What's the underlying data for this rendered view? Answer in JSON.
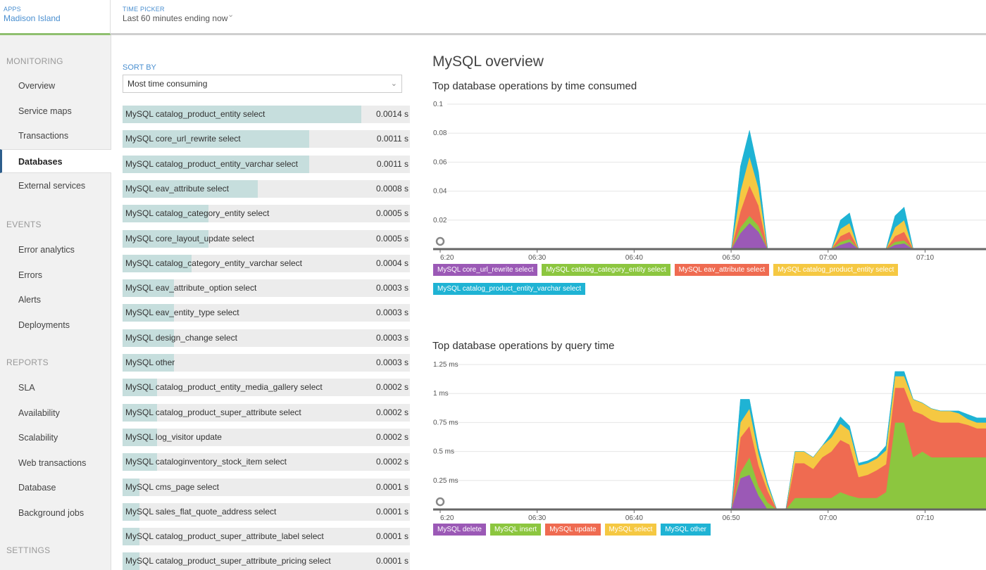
{
  "topbar": {
    "apps_label": "APPS",
    "app_name": "Madison Island",
    "time_picker_label": "TIME PICKER",
    "time_range": "Last 60 minutes ending now"
  },
  "sidebar": {
    "sections": [
      {
        "title": "MONITORING",
        "items": [
          "Overview",
          "Service maps",
          "Transactions",
          "Databases",
          "External services"
        ]
      },
      {
        "title": "EVENTS",
        "items": [
          "Error analytics",
          "Errors",
          "Alerts",
          "Deployments"
        ]
      },
      {
        "title": "REPORTS",
        "items": [
          "SLA",
          "Availability",
          "Scalability",
          "Web transactions",
          "Database",
          "Background jobs"
        ]
      },
      {
        "title": "SETTINGS",
        "items": []
      }
    ],
    "active_item": "Databases"
  },
  "sort": {
    "label": "SORT BY",
    "selected": "Most time consuming"
  },
  "operations": [
    {
      "name": "MySQL catalog_product_entity select",
      "value": "0.0014 s",
      "fraction": 0.83
    },
    {
      "name": "MySQL core_url_rewrite select",
      "value": "0.0011 s",
      "fraction": 0.65
    },
    {
      "name": "MySQL catalog_product_entity_varchar select",
      "value": "0.0011 s",
      "fraction": 0.65
    },
    {
      "name": "MySQL eav_attribute select",
      "value": "0.0008 s",
      "fraction": 0.47
    },
    {
      "name": "MySQL catalog_category_entity select",
      "value": "0.0005 s",
      "fraction": 0.3
    },
    {
      "name": "MySQL core_layout_update select",
      "value": "0.0005 s",
      "fraction": 0.3
    },
    {
      "name": "MySQL catalog_category_entity_varchar select",
      "value": "0.0004 s",
      "fraction": 0.24
    },
    {
      "name": "MySQL eav_attribute_option select",
      "value": "0.0003 s",
      "fraction": 0.18
    },
    {
      "name": "MySQL eav_entity_type select",
      "value": "0.0003 s",
      "fraction": 0.18
    },
    {
      "name": "MySQL design_change select",
      "value": "0.0003 s",
      "fraction": 0.18
    },
    {
      "name": "MySQL other",
      "value": "0.0003 s",
      "fraction": 0.18
    },
    {
      "name": "MySQL catalog_product_entity_media_gallery select",
      "value": "0.0002 s",
      "fraction": 0.12
    },
    {
      "name": "MySQL catalog_product_super_attribute select",
      "value": "0.0002 s",
      "fraction": 0.12
    },
    {
      "name": "MySQL log_visitor update",
      "value": "0.0002 s",
      "fraction": 0.12
    },
    {
      "name": "MySQL cataloginventory_stock_item select",
      "value": "0.0002 s",
      "fraction": 0.12
    },
    {
      "name": "MySQL cms_page select",
      "value": "0.0001 s",
      "fraction": 0.06
    },
    {
      "name": "MySQL sales_flat_quote_address select",
      "value": "0.0001 s",
      "fraction": 0.06
    },
    {
      "name": "MySQL catalog_product_super_attribute_label select",
      "value": "0.0001 s",
      "fraction": 0.06
    },
    {
      "name": "MySQL catalog_product_super_attribute_pricing select",
      "value": "0.0001 s",
      "fraction": 0.06
    }
  ],
  "main": {
    "title": "MySQL overview"
  },
  "chart_data": [
    {
      "type": "area",
      "title": "Top database operations by time consumed",
      "x": [
        "6:20",
        "6:25",
        "6:30",
        "6:35",
        "6:40",
        "6:45",
        "6:50",
        "6:52",
        "6:53",
        "6:54",
        "6:55",
        "6:56",
        "6:57",
        "6:58",
        "6:59",
        "7:00",
        "7:01",
        "7:02",
        "7:03",
        "7:04",
        "7:05",
        "7:06",
        "7:07",
        "7:08",
        "7:09",
        "7:10",
        "7:11",
        "7:12",
        "7:13",
        "7:14",
        "7:15",
        "7:16",
        "7:17",
        "7:18",
        "7:19",
        "7:20"
      ],
      "xticks": [
        "6:20",
        "06:30",
        "06:40",
        "06:50",
        "07:00",
        "07:10"
      ],
      "yticks": [
        "0.1",
        "0.08",
        "0.06",
        "0.04",
        "0.02"
      ],
      "ylim": [
        0,
        0.1
      ],
      "colors": [
        "#9b59b6",
        "#8cc63f",
        "#ef6b51",
        "#f5c842",
        "#1fb3d4"
      ],
      "series": [
        {
          "name": "MySQL core_url_rewrite select",
          "values": [
            0,
            0,
            0,
            0,
            0,
            0,
            0,
            0,
            0.011,
            0.018,
            0.012,
            0,
            0,
            0,
            0,
            0,
            0,
            0,
            0,
            0.003,
            0.005,
            0,
            0,
            0,
            0,
            0.003,
            0.004,
            0,
            0,
            0,
            0,
            0,
            0,
            0,
            0,
            0
          ]
        },
        {
          "name": "MySQL catalog_category_entity select",
          "values": [
            0,
            0,
            0,
            0,
            0,
            0,
            0,
            0,
            0.004,
            0.005,
            0.004,
            0,
            0,
            0,
            0,
            0,
            0,
            0,
            0,
            0.002,
            0.002,
            0,
            0,
            0,
            0,
            0.002,
            0.002,
            0,
            0,
            0,
            0,
            0,
            0,
            0,
            0,
            0
          ]
        },
        {
          "name": "MySQL eav_attribute select",
          "values": [
            0,
            0,
            0,
            0,
            0,
            0,
            0,
            0,
            0.011,
            0.021,
            0.014,
            0,
            0,
            0,
            0,
            0,
            0,
            0,
            0,
            0.004,
            0.005,
            0,
            0,
            0,
            0,
            0.004,
            0.006,
            0,
            0,
            0,
            0,
            0,
            0,
            0,
            0,
            0
          ]
        },
        {
          "name": "MySQL catalog_product_entity select",
          "values": [
            0,
            0,
            0,
            0,
            0,
            0,
            0,
            0,
            0.014,
            0.02,
            0.012,
            0,
            0,
            0,
            0,
            0,
            0,
            0,
            0,
            0.005,
            0.006,
            0,
            0,
            0,
            0,
            0.006,
            0.008,
            0,
            0,
            0,
            0,
            0,
            0,
            0,
            0,
            0
          ]
        },
        {
          "name": "MySQL catalog_product_entity_varchar select",
          "values": [
            0,
            0,
            0,
            0,
            0,
            0,
            0,
            0,
            0.017,
            0.018,
            0.011,
            0,
            0,
            0,
            0,
            0,
            0,
            0,
            0,
            0.006,
            0.007,
            0,
            0,
            0,
            0,
            0.008,
            0.009,
            0,
            0,
            0,
            0,
            0,
            0,
            0,
            0,
            0
          ]
        }
      ]
    },
    {
      "type": "area",
      "title": "Top database operations by query time",
      "x": [
        "6:20",
        "6:25",
        "6:30",
        "6:35",
        "6:40",
        "6:45",
        "6:50",
        "6:52",
        "6:53",
        "6:54",
        "6:55",
        "6:56",
        "6:57",
        "6:58",
        "6:59",
        "7:00",
        "7:01",
        "7:02",
        "7:03",
        "7:04",
        "7:05",
        "7:06",
        "7:07",
        "7:08",
        "7:09",
        "7:10",
        "7:11",
        "7:12",
        "7:13",
        "7:14",
        "7:15",
        "7:16",
        "7:17",
        "7:18",
        "7:19",
        "7:20"
      ],
      "xticks": [
        "6:20",
        "06:30",
        "06:40",
        "06:50",
        "07:00",
        "07:10"
      ],
      "yticks": [
        "1.25 ms",
        "1 ms",
        "0.75 ms",
        "0.5 ms",
        "0.25 ms"
      ],
      "ylim": [
        0,
        1.25
      ],
      "colors": [
        "#9b59b6",
        "#8cc63f",
        "#ef6b51",
        "#f5c842",
        "#1fb3d4"
      ],
      "series": [
        {
          "name": "MySQL delete",
          "values": [
            0,
            0,
            0,
            0,
            0,
            0,
            0,
            0,
            0.27,
            0.3,
            0.12,
            0,
            0,
            0,
            0,
            0,
            0,
            0,
            0,
            0,
            0,
            0,
            0,
            0,
            0,
            0,
            0,
            0,
            0,
            0,
            0,
            0,
            0,
            0,
            0,
            0
          ]
        },
        {
          "name": "MySQL insert",
          "values": [
            0,
            0,
            0,
            0,
            0,
            0,
            0,
            0,
            0.05,
            0.15,
            0.08,
            0.06,
            0,
            0,
            0.1,
            0.1,
            0.1,
            0.1,
            0.1,
            0.15,
            0.12,
            0.1,
            0.1,
            0.1,
            0.15,
            0.75,
            0.75,
            0.45,
            0.5,
            0.45,
            0.45,
            0.45,
            0.45,
            0.45,
            0.45,
            0.45
          ]
        },
        {
          "name": "MySQL update",
          "values": [
            0,
            0,
            0,
            0,
            0,
            0,
            0,
            0,
            0.3,
            0.27,
            0.18,
            0.1,
            0,
            0,
            0.3,
            0.3,
            0.25,
            0.35,
            0.4,
            0.45,
            0.44,
            0.18,
            0.2,
            0.24,
            0.24,
            0.3,
            0.3,
            0.4,
            0.32,
            0.32,
            0.3,
            0.3,
            0.3,
            0.28,
            0.25,
            0.25
          ]
        },
        {
          "name": "MySQL select",
          "values": [
            0,
            0,
            0,
            0,
            0,
            0,
            0,
            0,
            0.13,
            0.15,
            0.1,
            0.05,
            0,
            0,
            0.1,
            0.1,
            0.1,
            0.1,
            0.12,
            0.14,
            0.12,
            0.1,
            0.1,
            0.1,
            0.12,
            0.1,
            0.1,
            0.1,
            0.1,
            0.1,
            0.1,
            0.1,
            0.08,
            0.05,
            0.05,
            0.05
          ]
        },
        {
          "name": "MySQL other",
          "values": [
            0,
            0,
            0,
            0,
            0,
            0,
            0,
            0,
            0.2,
            0.08,
            0.05,
            0.02,
            0,
            0,
            0,
            0,
            0,
            0,
            0.04,
            0.06,
            0.04,
            0.02,
            0.02,
            0.02,
            0.04,
            0.04,
            0.04,
            0,
            0,
            0,
            0,
            0,
            0.02,
            0.04,
            0.04,
            0.04
          ]
        }
      ]
    }
  ]
}
